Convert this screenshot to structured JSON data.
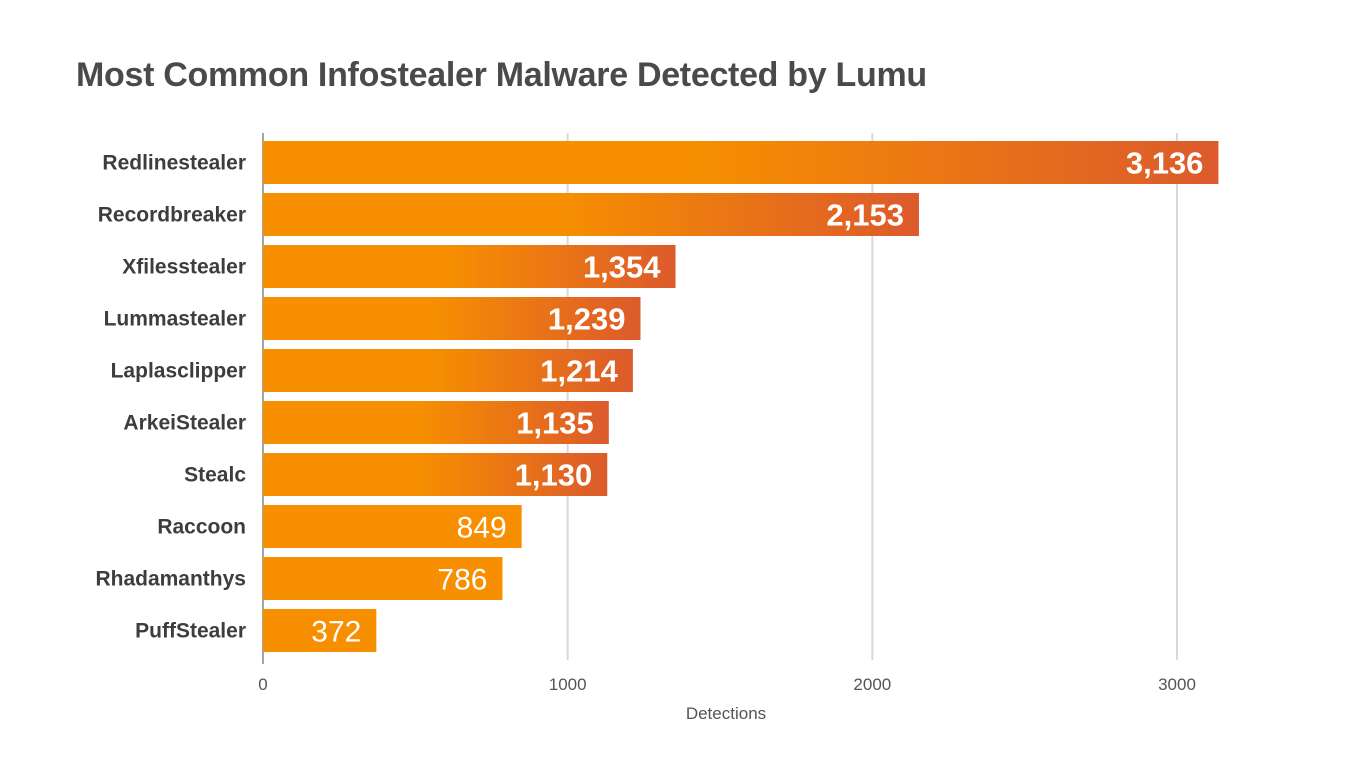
{
  "chart_data": {
    "type": "bar",
    "orientation": "horizontal",
    "title": "Most Common Infostealer Malware Detected by Lumu",
    "xlabel": "Detections",
    "ylabel": "",
    "xlim": [
      0,
      3000
    ],
    "xticks": [
      0,
      1000,
      2000,
      3000
    ],
    "xtick_labels": [
      "0",
      "1000",
      "2000",
      "3000"
    ],
    "grid": "vertical",
    "categories": [
      "Redlinestealer",
      "Recordbreaker",
      "Xfilesstealer",
      "Lummastealer",
      "Laplasclipper",
      "ArkeiStealer",
      "Stealc",
      "Raccoon",
      "Rhadamanthys",
      "PuffStealer"
    ],
    "values": [
      3136,
      2153,
      1354,
      1239,
      1214,
      1135,
      1130,
      849,
      786,
      372
    ],
    "data_labels": [
      "3,136",
      "2,153",
      "1,354",
      "1,239",
      "1,214",
      "1,135",
      "1,130",
      "849",
      "786",
      "372"
    ],
    "colors": {
      "start": "#F78F00",
      "end": "#DC5A2C",
      "grid": "#D9D9D9",
      "axis": "#A6A6A6"
    }
  }
}
